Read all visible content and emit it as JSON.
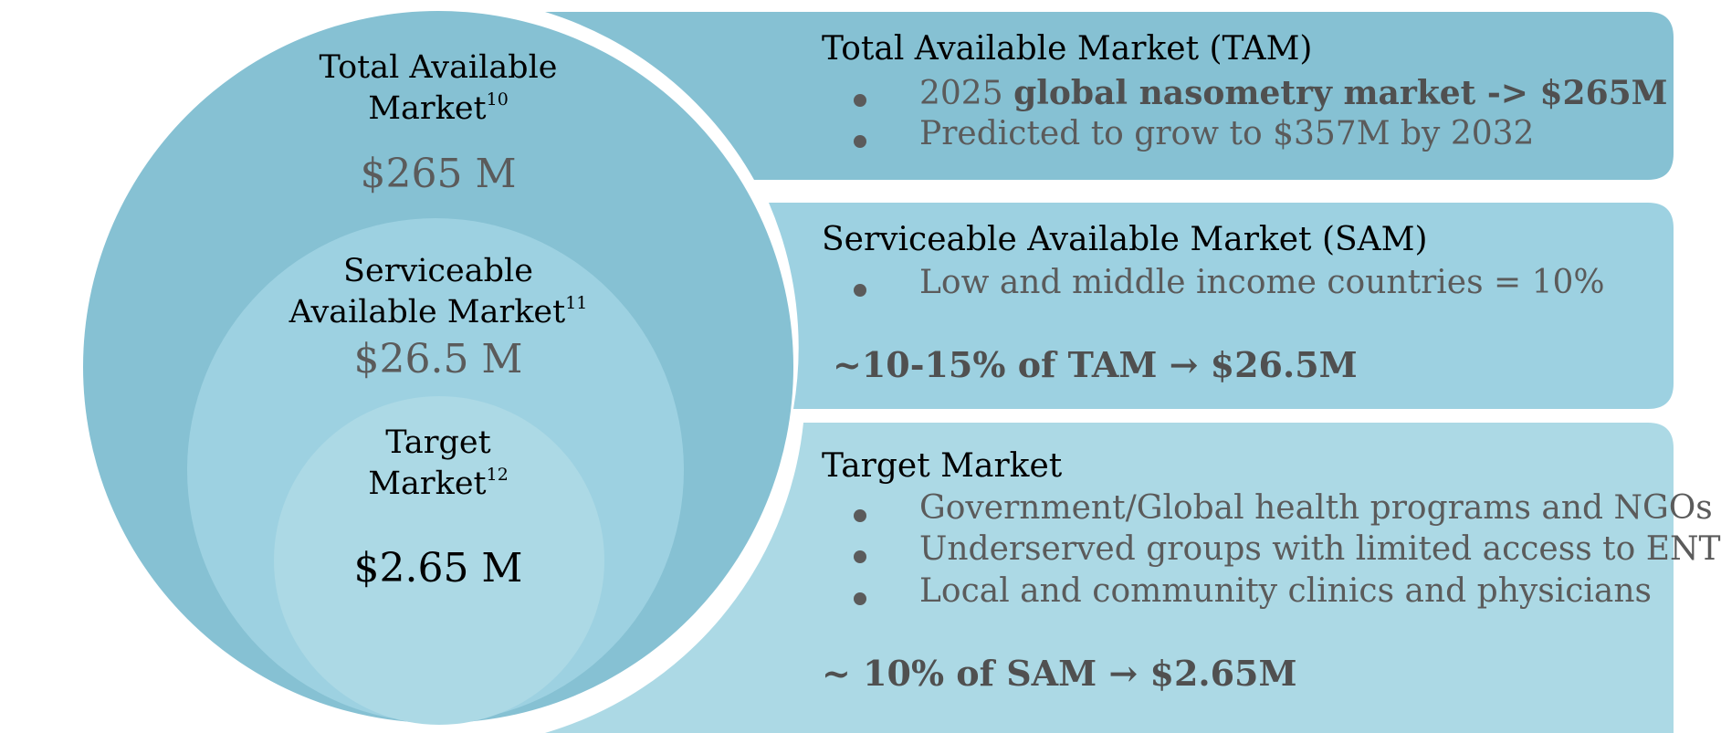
{
  "colors": {
    "tam_fill": "#86c1d3",
    "sam_fill": "#9dd1e1",
    "target_fill": "#acd9e5",
    "body_text": "#5b5b5b",
    "heading_text": "#000000"
  },
  "circles": {
    "tam": {
      "label_line1": "Total Available",
      "label_line2": "Market",
      "ref": "10",
      "value": "$265 M"
    },
    "sam": {
      "label_line1": "Serviceable",
      "label_line2": "Available Market",
      "ref": "11",
      "value": "$26.5 M"
    },
    "target": {
      "label_line1": "Target",
      "label_line2": "Market",
      "ref": "12",
      "value": "$2.65 M"
    }
  },
  "panels": {
    "tam": {
      "heading": "Total Available Market (TAM)",
      "bullets": [
        {
          "plain": "2025 ",
          "bold": "global nasometry market -> $265M"
        },
        {
          "plain": "Predicted to grow to $357M by 2032",
          "bold": ""
        }
      ]
    },
    "sam": {
      "heading": "Serviceable Available Market (SAM)",
      "bullets": [
        {
          "plain": "Low and middle income countries = 10%"
        }
      ],
      "summary": "~10-15% of TAM → $26.5M"
    },
    "target": {
      "heading": "Target Market",
      "bullets": [
        {
          "plain": "Government/Global health programs and NGOs"
        },
        {
          "plain": "Underserved groups with limited access to ENT"
        },
        {
          "plain": "Local and community clinics and physicians"
        }
      ],
      "summary": "~ 10% of SAM → $2.65M"
    }
  }
}
